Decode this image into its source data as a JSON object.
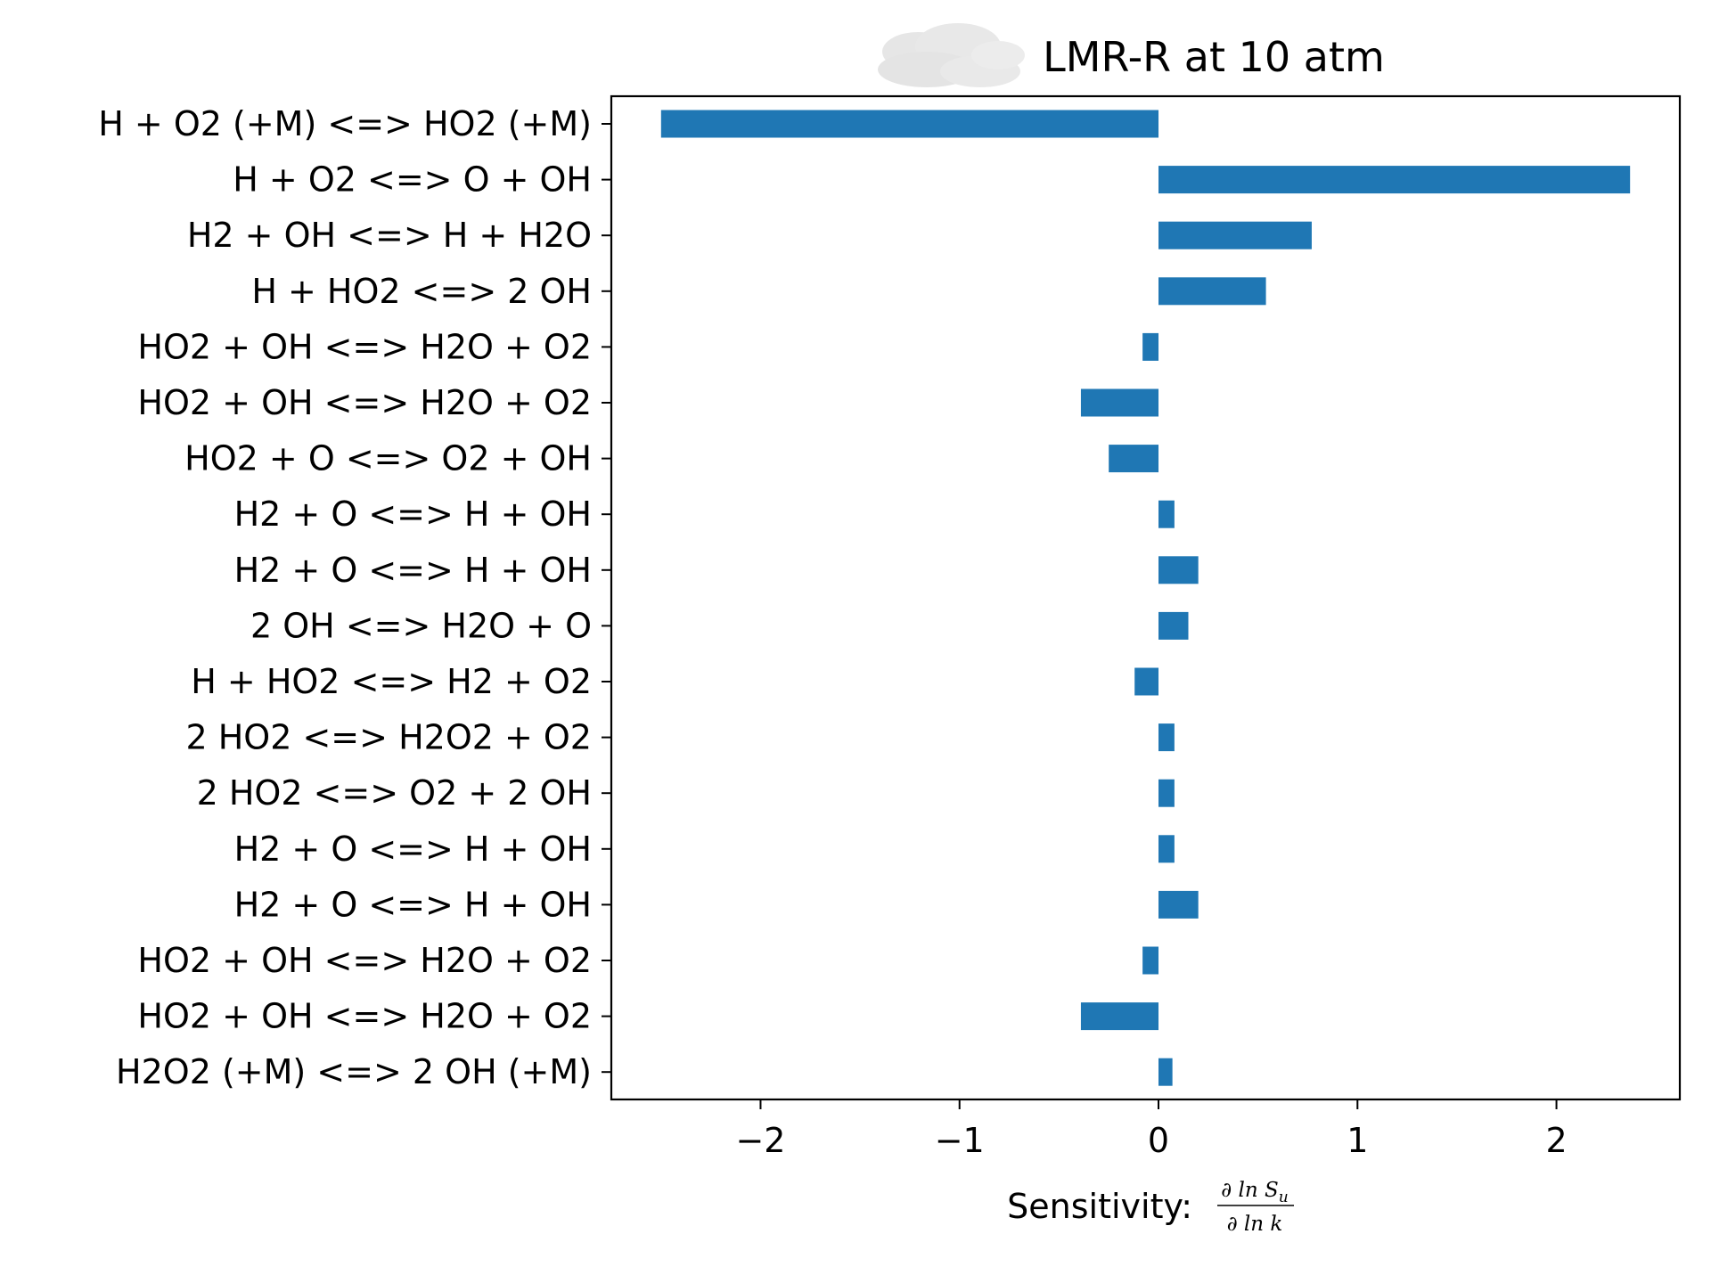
{
  "chart_data": {
    "type": "bar",
    "orientation": "horizontal",
    "title": "LMR-R at 10 atm",
    "xlabel": "Sensitivity:",
    "xlabel_fraction": {
      "numerator": "∂ ln S",
      "numerator_sub": "u",
      "denominator": "∂ ln k"
    },
    "ylabel": "",
    "xlim": [
      -2.75,
      2.62
    ],
    "xticks": [
      {
        "value": -2,
        "label": "−2"
      },
      {
        "value": -1,
        "label": "−1"
      },
      {
        "value": 0,
        "label": "0"
      },
      {
        "value": 1,
        "label": "1"
      },
      {
        "value": 2,
        "label": "2"
      }
    ],
    "grid": false,
    "bar_color": "#1f77b4",
    "categories": [
      "H + O2 (+M) <=> HO2 (+M)",
      "H + O2 <=> O + OH",
      "H2 + OH <=> H + H2O",
      "H + HO2 <=> 2 OH",
      "HO2 + OH <=> H2O + O2",
      "HO2 + OH <=> H2O + O2",
      "HO2 + O <=> O2 + OH",
      "H2 + O <=> H + OH",
      "H2 + O <=> H + OH",
      "2 OH <=> H2O + O",
      "H + HO2 <=> H2 + O2",
      "2 HO2 <=> H2O2 + O2",
      "2 HO2 <=> O2 + 2 OH",
      "H2 + O <=> H + OH",
      "H2 + O <=> H + OH",
      "HO2 + OH <=> H2O + O2",
      "HO2 + OH <=> H2O + O2",
      "H2O2 (+M) <=> 2 OH (+M)"
    ],
    "values": [
      -2.5,
      2.37,
      0.77,
      0.54,
      -0.08,
      -0.39,
      -0.25,
      0.08,
      0.2,
      0.15,
      -0.12,
      0.08,
      0.08,
      0.08,
      0.2,
      -0.08,
      -0.39,
      0.07
    ]
  }
}
